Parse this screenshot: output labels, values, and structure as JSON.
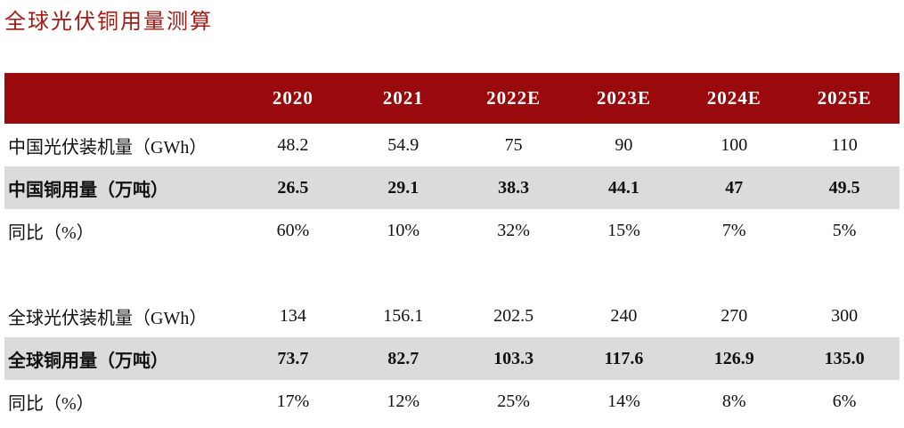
{
  "page": {
    "title": "全球光伏铜用量测算"
  },
  "colors": {
    "title_red": "#A21C17",
    "header_bg": "#9A0A0C",
    "header_text": "#FFFFFF",
    "highlight_row_bg": "#DBDBDB",
    "body_text": "#111111"
  },
  "table": {
    "columns": [
      "",
      "2020",
      "2021",
      "2022E",
      "2023E",
      "2024E",
      "2025E"
    ],
    "rows": [
      {
        "label": "中国光伏装机量（GWh）",
        "values": [
          "48.2",
          "54.9",
          "75",
          "90",
          "100",
          "110"
        ],
        "highlight": false
      },
      {
        "label": "中国铜用量（万吨）",
        "values": [
          "26.5",
          "29.1",
          "38.3",
          "44.1",
          "47",
          "49.5"
        ],
        "highlight": true
      },
      {
        "label": "同比（%）",
        "values": [
          "60%",
          "10%",
          "32%",
          "15%",
          "7%",
          "5%"
        ],
        "highlight": false
      },
      {
        "label": "",
        "values": [
          "",
          "",
          "",
          "",
          "",
          ""
        ],
        "highlight": false
      },
      {
        "label": "全球光伏装机量（GWh）",
        "values": [
          "134",
          "156.1",
          "202.5",
          "240",
          "270",
          "300"
        ],
        "highlight": false
      },
      {
        "label": "全球铜用量（万吨）",
        "values": [
          "73.7",
          "82.7",
          "103.3",
          "117.6",
          "126.9",
          "135.0"
        ],
        "highlight": true
      },
      {
        "label": "同比（%）",
        "values": [
          "17%",
          "12%",
          "25%",
          "14%",
          "8%",
          "6%"
        ],
        "highlight": false
      }
    ]
  }
}
